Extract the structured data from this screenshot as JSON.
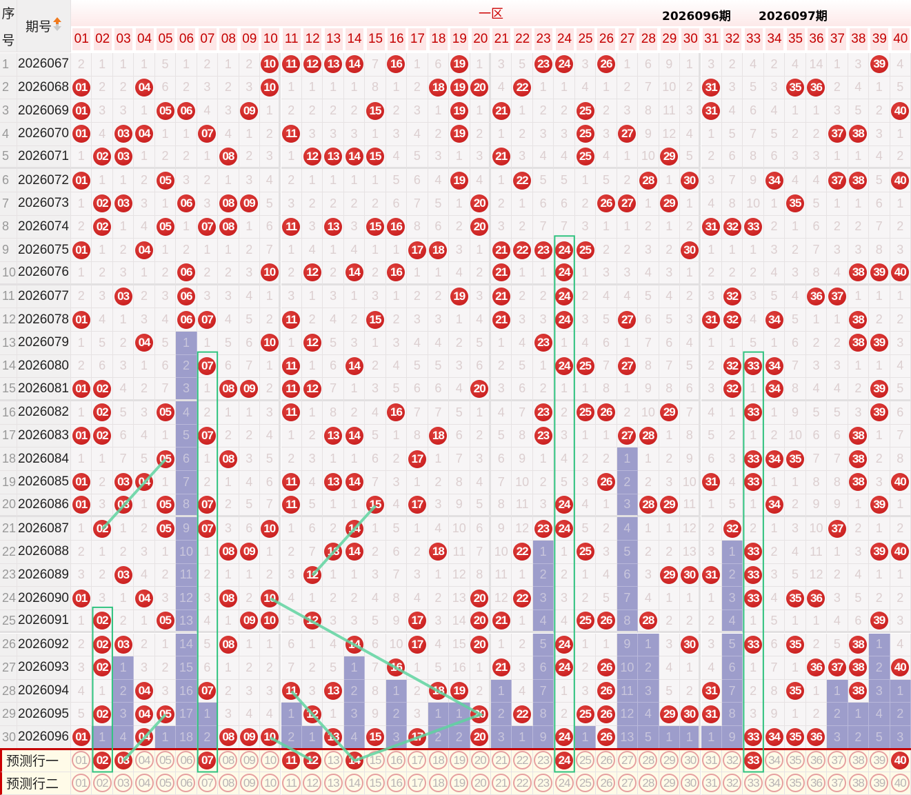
{
  "header": {
    "seq_label_top": "序",
    "seq_label_bottom": "号",
    "period_label": "期号",
    "zone_label": "一区",
    "sort_icon": "sort-up-down-arrow-icon",
    "numbers": [
      "01",
      "02",
      "03",
      "04",
      "05",
      "06",
      "07",
      "08",
      "09",
      "10",
      "11",
      "12",
      "13",
      "14",
      "15",
      "16",
      "17",
      "18",
      "19",
      "20",
      "21",
      "22",
      "23",
      "24",
      "25",
      "26",
      "27",
      "28",
      "29",
      "30",
      "31",
      "32",
      "33",
      "34",
      "35",
      "36",
      "37",
      "38",
      "39",
      "40"
    ]
  },
  "row1_miss": [
    2,
    1,
    1,
    1,
    5,
    1,
    2,
    1,
    2,
    0,
    0,
    0,
    0,
    0,
    7,
    0,
    1,
    6,
    0,
    1,
    3,
    5,
    0,
    0,
    3,
    0,
    1,
    6,
    9,
    1,
    3,
    2,
    4,
    2,
    4,
    14,
    1,
    3,
    0,
    4
  ],
  "rows": [
    {
      "seq": "1",
      "period": "2026067",
      "hits": [
        10,
        11,
        12,
        13,
        14,
        16,
        19,
        23,
        24,
        26,
        39
      ]
    },
    {
      "seq": "2",
      "period": "2026068",
      "hits": [
        1,
        4,
        10,
        18,
        19,
        20,
        22,
        31,
        35,
        36
      ]
    },
    {
      "seq": "3",
      "period": "2026069",
      "hits": [
        1,
        5,
        6,
        9,
        15,
        19,
        21,
        25,
        31,
        40
      ]
    },
    {
      "seq": "4",
      "period": "2026070",
      "hits": [
        1,
        3,
        4,
        7,
        11,
        19,
        25,
        27,
        37,
        38
      ]
    },
    {
      "seq": "5",
      "period": "2026071",
      "hits": [
        2,
        3,
        8,
        12,
        13,
        14,
        15,
        21,
        25,
        29
      ]
    },
    {
      "seq": "6",
      "period": "2026072",
      "hits": [
        1,
        5,
        19,
        22,
        28,
        30,
        34,
        37,
        38,
        40
      ]
    },
    {
      "seq": "7",
      "period": "2026073",
      "hits": [
        2,
        3,
        6,
        8,
        9,
        20,
        26,
        27,
        29,
        35
      ]
    },
    {
      "seq": "8",
      "period": "2026074",
      "hits": [
        2,
        5,
        7,
        8,
        11,
        13,
        15,
        16,
        20,
        31,
        32,
        33
      ]
    },
    {
      "seq": "9",
      "period": "2026075",
      "hits": [
        1,
        4,
        17,
        18,
        21,
        22,
        23,
        24,
        25,
        30
      ]
    },
    {
      "seq": "10",
      "period": "2026076",
      "hits": [
        6,
        10,
        12,
        14,
        16,
        21,
        24,
        38,
        39,
        40
      ]
    },
    {
      "seq": "11",
      "period": "2026077",
      "hits": [
        3,
        6,
        19,
        21,
        24,
        32,
        36,
        37
      ]
    },
    {
      "seq": "12",
      "period": "2026078",
      "hits": [
        1,
        6,
        7,
        11,
        15,
        21,
        24,
        27,
        31,
        32,
        34,
        38
      ]
    },
    {
      "seq": "13",
      "period": "2026079",
      "hits": [
        4,
        10,
        12,
        23,
        38,
        39
      ]
    },
    {
      "seq": "14",
      "period": "2026080",
      "hits": [
        7,
        11,
        14,
        24,
        25,
        27,
        32,
        33,
        34
      ]
    },
    {
      "seq": "15",
      "period": "2026081",
      "hits": [
        1,
        2,
        8,
        9,
        11,
        12,
        20,
        32,
        34,
        39
      ]
    },
    {
      "seq": "16",
      "period": "2026082",
      "hits": [
        2,
        5,
        11,
        16,
        23,
        25,
        26,
        29,
        33,
        39
      ]
    },
    {
      "seq": "17",
      "period": "2026083",
      "hits": [
        1,
        2,
        7,
        13,
        14,
        18,
        23,
        27,
        28,
        38
      ]
    },
    {
      "seq": "18",
      "period": "2026084",
      "hits": [
        5,
        8,
        17,
        33,
        34,
        35,
        38
      ]
    },
    {
      "seq": "19",
      "period": "2026085",
      "hits": [
        1,
        3,
        4,
        11,
        13,
        14,
        26,
        31,
        33,
        38,
        40
      ]
    },
    {
      "seq": "20",
      "period": "2026086",
      "hits": [
        1,
        3,
        5,
        7,
        11,
        15,
        17,
        24,
        28,
        29,
        34,
        39
      ]
    },
    {
      "seq": "21",
      "period": "2026087",
      "hits": [
        2,
        5,
        7,
        10,
        14,
        23,
        24,
        32,
        37
      ]
    },
    {
      "seq": "22",
      "period": "2026088",
      "hits": [
        8,
        9,
        13,
        14,
        18,
        22,
        25,
        33,
        39,
        40
      ]
    },
    {
      "seq": "23",
      "period": "2026089",
      "hits": [
        3,
        12,
        29,
        30,
        31,
        33
      ]
    },
    {
      "seq": "24",
      "period": "2026090",
      "hits": [
        1,
        4,
        8,
        10,
        20,
        22,
        33,
        35,
        36
      ]
    },
    {
      "seq": "25",
      "period": "2026091",
      "hits": [
        2,
        5,
        9,
        10,
        12,
        17,
        20,
        21,
        25,
        26,
        28,
        39
      ]
    },
    {
      "seq": "26",
      "period": "2026092",
      "hits": [
        2,
        3,
        8,
        14,
        17,
        20,
        24,
        30,
        33,
        35,
        38
      ]
    },
    {
      "seq": "27",
      "period": "2026093",
      "hits": [
        2,
        16,
        21,
        24,
        26,
        36,
        37,
        38,
        40
      ]
    },
    {
      "seq": "28",
      "period": "2026094",
      "hits": [
        4,
        7,
        11,
        13,
        18,
        19,
        26,
        31,
        35,
        38
      ]
    },
    {
      "seq": "29",
      "period": "2026095",
      "hits": [
        2,
        4,
        5,
        12,
        20,
        22,
        25,
        26,
        29,
        30,
        31
      ]
    },
    {
      "seq": "30",
      "period": "2026096",
      "hits": [
        1,
        4,
        8,
        9,
        10,
        13,
        15,
        17,
        20,
        24,
        26,
        33,
        34,
        35,
        36
      ]
    }
  ],
  "predictions": [
    {
      "label": "预测行一",
      "hits": [
        2,
        3,
        7,
        11,
        12,
        14,
        24,
        33,
        40
      ]
    },
    {
      "label": "预测行二",
      "hits": []
    }
  ],
  "annotations": {
    "current": "2026096期",
    "next": "2026097期"
  },
  "highlight_boxes": [
    {
      "col": 2,
      "from_row": 25
    },
    {
      "col": 7,
      "from_row": 14
    },
    {
      "col": 24,
      "from_row": 9
    },
    {
      "col": 33,
      "from_row": 14
    }
  ],
  "trend_lines": [
    [
      [
        18,
        5
      ],
      [
        21,
        2
      ]
    ],
    [
      [
        20,
        15
      ],
      [
        23,
        12
      ]
    ],
    [
      [
        24,
        10
      ],
      [
        29,
        20
      ],
      [
        31,
        14
      ]
    ],
    [
      [
        28,
        11
      ],
      [
        31,
        14
      ]
    ],
    [
      [
        30,
        10
      ],
      [
        31,
        12
      ]
    ],
    [
      [
        29,
        5
      ],
      [
        31,
        3
      ]
    ]
  ],
  "colors": {
    "ball": "#cc2222",
    "purple": "#9d9dcb",
    "box": "#2ec27e",
    "line": "#5fd3a0",
    "header_text": "#c40000"
  }
}
